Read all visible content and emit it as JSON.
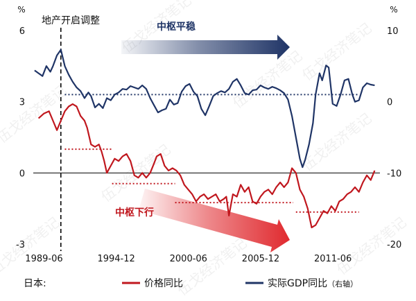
{
  "chart_data": {
    "type": "line",
    "x_ticks": [
      "1989-06",
      "1994-12",
      "2000-06",
      "2005-12",
      "2011-06"
    ],
    "y_left": {
      "unit": "%",
      "ticks": [
        6,
        3,
        0,
        -3
      ],
      "range": [
        -3,
        6
      ]
    },
    "y_right": {
      "unit": "%",
      "ticks": [
        10,
        0,
        -10,
        -20
      ],
      "range": [
        -20,
        10
      ]
    },
    "x_range": [
      1988.6,
      2015.0
    ],
    "legend_prefix": "日本:",
    "legend": [
      {
        "label": "价格同比",
        "suffix": "",
        "color": "#c0171e"
      },
      {
        "label": "实际GDP同比",
        "suffix": "（右轴）",
        "color": "#1f3466"
      }
    ],
    "annotations": {
      "bubble_burst": "地产开启调整",
      "center_stable": "中枢平稳",
      "center_down": "中枢下行",
      "watermark": "伍戈经济笔记"
    },
    "marker_year": 1990.7,
    "series": [
      {
        "name": "价格同比",
        "axis": "left",
        "color": "#c0171e",
        "points": [
          [
            1989.0,
            2.3
          ],
          [
            1989.4,
            2.5
          ],
          [
            1989.8,
            2.6
          ],
          [
            1990.1,
            2.2
          ],
          [
            1990.4,
            1.8
          ],
          [
            1990.7,
            2.2
          ],
          [
            1991.0,
            2.6
          ],
          [
            1991.3,
            2.8
          ],
          [
            1991.6,
            2.9
          ],
          [
            1991.9,
            2.8
          ],
          [
            1992.2,
            2.4
          ],
          [
            1992.5,
            2.2
          ],
          [
            1992.7,
            1.9
          ],
          [
            1993.0,
            1.2
          ],
          [
            1993.3,
            1.1
          ],
          [
            1993.6,
            1.2
          ],
          [
            1993.8,
            0.9
          ],
          [
            1994.0,
            0.5
          ],
          [
            1994.2,
            0.0
          ],
          [
            1994.5,
            0.3
          ],
          [
            1994.8,
            0.6
          ],
          [
            1995.1,
            0.5
          ],
          [
            1995.4,
            0.7
          ],
          [
            1995.7,
            0.8
          ],
          [
            1996.0,
            0.5
          ],
          [
            1996.3,
            -0.1
          ],
          [
            1996.6,
            -0.2
          ],
          [
            1996.9,
            0.0
          ],
          [
            1997.2,
            -0.2
          ],
          [
            1997.5,
            0.0
          ],
          [
            1997.8,
            0.4
          ],
          [
            1998.0,
            0.7
          ],
          [
            1998.3,
            0.8
          ],
          [
            1998.6,
            0.3
          ],
          [
            1998.9,
            0.1
          ],
          [
            1999.2,
            0.2
          ],
          [
            1999.5,
            0.1
          ],
          [
            1999.8,
            -0.1
          ],
          [
            2000.1,
            -0.5
          ],
          [
            2000.4,
            -0.7
          ],
          [
            2000.7,
            -0.9
          ],
          [
            2001.0,
            -1.2
          ],
          [
            2001.3,
            -1.0
          ],
          [
            2001.6,
            -0.9
          ],
          [
            2001.9,
            -1.1
          ],
          [
            2002.2,
            -1.0
          ],
          [
            2002.5,
            -0.9
          ],
          [
            2002.8,
            -1.2
          ],
          [
            2003.1,
            -1.1
          ],
          [
            2003.3,
            -1.0
          ],
          [
            2003.5,
            -1.8
          ],
          [
            2003.8,
            -0.9
          ],
          [
            2004.1,
            -1.0
          ],
          [
            2004.4,
            -0.5
          ],
          [
            2004.7,
            -0.8
          ],
          [
            2005.0,
            -0.6
          ],
          [
            2005.3,
            -1.2
          ],
          [
            2005.6,
            -1.3
          ],
          [
            2005.9,
            -1.0
          ],
          [
            2006.2,
            -0.8
          ],
          [
            2006.5,
            -0.7
          ],
          [
            2006.8,
            -0.9
          ],
          [
            2007.1,
            -0.6
          ],
          [
            2007.4,
            -0.4
          ],
          [
            2007.7,
            -0.6
          ],
          [
            2008.0,
            -0.4
          ],
          [
            2008.3,
            0.2
          ],
          [
            2008.6,
            0.0
          ],
          [
            2008.9,
            -0.7
          ],
          [
            2009.2,
            -1.0
          ],
          [
            2009.5,
            -1.5
          ],
          [
            2009.8,
            -2.3
          ],
          [
            2010.1,
            -2.2
          ],
          [
            2010.4,
            -1.9
          ],
          [
            2010.7,
            -1.6
          ],
          [
            2011.0,
            -1.7
          ],
          [
            2011.3,
            -1.4
          ],
          [
            2011.6,
            -1.6
          ],
          [
            2011.9,
            -1.2
          ],
          [
            2012.2,
            -1.1
          ],
          [
            2012.5,
            -0.9
          ],
          [
            2012.8,
            -0.8
          ],
          [
            2013.1,
            -0.6
          ],
          [
            2013.4,
            -0.8
          ],
          [
            2013.7,
            -0.4
          ],
          [
            2014.0,
            -0.1
          ],
          [
            2014.3,
            -0.3
          ],
          [
            2014.6,
            0.1
          ]
        ]
      },
      {
        "name": "实际GDP同比",
        "axis": "right",
        "color": "#1f3466",
        "points": [
          [
            1988.7,
            4.4
          ],
          [
            1989.0,
            4.0
          ],
          [
            1989.3,
            3.6
          ],
          [
            1989.6,
            5.0
          ],
          [
            1989.9,
            4.2
          ],
          [
            1990.1,
            5.0
          ],
          [
            1990.4,
            6.5
          ],
          [
            1990.7,
            7.3
          ],
          [
            1991.0,
            5.0
          ],
          [
            1991.3,
            3.8
          ],
          [
            1991.6,
            2.8
          ],
          [
            1991.9,
            2.0
          ],
          [
            1992.2,
            1.5
          ],
          [
            1992.5,
            0.5
          ],
          [
            1992.8,
            1.3
          ],
          [
            1993.0,
            0.8
          ],
          [
            1993.3,
            -0.8
          ],
          [
            1993.6,
            -0.3
          ],
          [
            1993.9,
            -0.9
          ],
          [
            1994.2,
            0.5
          ],
          [
            1994.5,
            0.2
          ],
          [
            1994.8,
            1.0
          ],
          [
            1995.1,
            1.3
          ],
          [
            1995.4,
            1.8
          ],
          [
            1995.7,
            1.7
          ],
          [
            1996.0,
            2.2
          ],
          [
            1996.3,
            2.0
          ],
          [
            1996.6,
            1.8
          ],
          [
            1996.9,
            2.3
          ],
          [
            1997.2,
            1.8
          ],
          [
            1997.5,
            0.5
          ],
          [
            1997.8,
            -0.5
          ],
          [
            1998.1,
            -1.5
          ],
          [
            1998.4,
            -1.2
          ],
          [
            1998.7,
            -1.0
          ],
          [
            1999.0,
            0.3
          ],
          [
            1999.3,
            -0.4
          ],
          [
            1999.6,
            -0.2
          ],
          [
            1999.9,
            1.4
          ],
          [
            2000.2,
            2.2
          ],
          [
            2000.5,
            2.5
          ],
          [
            2000.8,
            1.4
          ],
          [
            2001.1,
            0.8
          ],
          [
            2001.4,
            -1.0
          ],
          [
            2001.7,
            -1.9
          ],
          [
            2002.0,
            -0.6
          ],
          [
            2002.3,
            0.8
          ],
          [
            2002.6,
            1.2
          ],
          [
            2002.9,
            1.5
          ],
          [
            2003.2,
            1.3
          ],
          [
            2003.5,
            1.8
          ],
          [
            2003.8,
            2.8
          ],
          [
            2004.1,
            3.2
          ],
          [
            2004.4,
            2.3
          ],
          [
            2004.7,
            1.2
          ],
          [
            2005.0,
            1.0
          ],
          [
            2005.3,
            1.6
          ],
          [
            2005.6,
            1.7
          ],
          [
            2005.9,
            2.3
          ],
          [
            2006.2,
            2.0
          ],
          [
            2006.5,
            1.8
          ],
          [
            2006.8,
            2.1
          ],
          [
            2007.1,
            1.9
          ],
          [
            2007.4,
            1.6
          ],
          [
            2007.7,
            1.2
          ],
          [
            2008.0,
            0.3
          ],
          [
            2008.3,
            -2.0
          ],
          [
            2008.6,
            -5.0
          ],
          [
            2008.9,
            -8.0
          ],
          [
            2009.1,
            -9.2
          ],
          [
            2009.3,
            -8.2
          ],
          [
            2009.6,
            -6.0
          ],
          [
            2009.9,
            -3.0
          ],
          [
            2010.1,
            1.0
          ],
          [
            2010.4,
            4.0
          ],
          [
            2010.6,
            3.0
          ],
          [
            2010.9,
            5.1
          ],
          [
            2011.1,
            4.8
          ],
          [
            2011.4,
            -0.3
          ],
          [
            2011.7,
            -0.6
          ],
          [
            2012.0,
            1.0
          ],
          [
            2012.3,
            3.0
          ],
          [
            2012.6,
            3.2
          ],
          [
            2012.9,
            1.0
          ],
          [
            2013.1,
            0.0
          ],
          [
            2013.4,
            0.2
          ],
          [
            2013.7,
            2.0
          ],
          [
            2014.0,
            2.6
          ],
          [
            2014.3,
            2.4
          ],
          [
            2014.6,
            2.3
          ]
        ]
      }
    ],
    "reference_levels": [
      {
        "series": "实际GDP同比",
        "axis": "right",
        "value": 1.0,
        "x": [
          1991.0,
          2013.4
        ]
      },
      {
        "series": "价格同比",
        "axis": "left",
        "value": 1.0,
        "x": [
          1991.0,
          1994.6
        ]
      },
      {
        "series": "价格同比",
        "axis": "left",
        "value": -0.45,
        "x": [
          1994.6,
          1999.4
        ]
      },
      {
        "series": "价格同比",
        "axis": "left",
        "value": -1.25,
        "x": [
          1999.4,
          2008.4
        ]
      },
      {
        "series": "价格同比",
        "axis": "left",
        "value": -1.65,
        "x": [
          2008.6,
          2013.4
        ]
      }
    ]
  }
}
